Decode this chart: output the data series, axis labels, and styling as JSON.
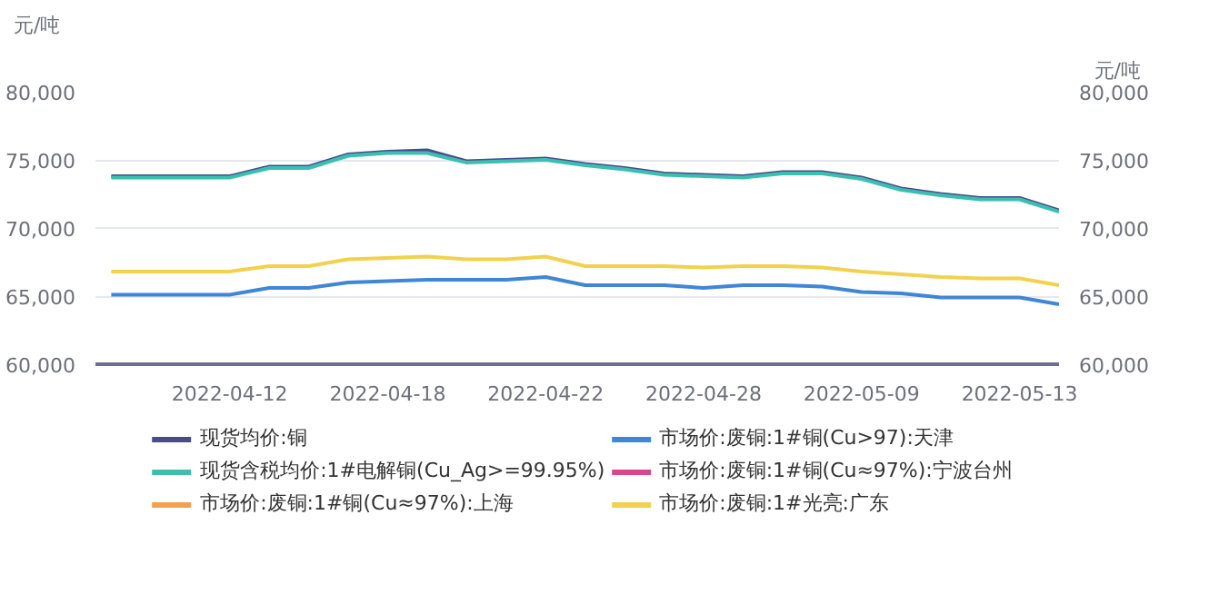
{
  "chart_data": {
    "type": "line",
    "ylabel": "元/吨",
    "y2label": "元/吨",
    "categories": [
      null,
      null,
      null,
      "2022-04-12",
      null,
      null,
      null,
      "2022-04-18",
      null,
      null,
      null,
      "2022-04-22",
      null,
      null,
      null,
      "2022-04-28",
      null,
      null,
      null,
      "2022-05-09",
      null,
      null,
      null,
      "2022-05-13",
      null
    ],
    "ylim": [
      60000,
      80000
    ],
    "yticks": [
      {
        "value": 60000,
        "label": "60,000"
      },
      {
        "value": 65000,
        "label": "65,000"
      },
      {
        "value": 70000,
        "label": "70,000"
      },
      {
        "value": 75000,
        "label": "75,000"
      },
      {
        "value": 80000,
        "label": "80,000"
      }
    ],
    "y2lim": [
      60000,
      80000
    ],
    "y2ticks": [
      {
        "value": 60000,
        "label": "60,000"
      },
      {
        "value": 65000,
        "label": "65,000"
      },
      {
        "value": 70000,
        "label": "70,000"
      },
      {
        "value": 75000,
        "label": "75,000"
      },
      {
        "value": 80000,
        "label": "80,000"
      }
    ],
    "grid": "y",
    "legend": "bottom",
    "marker": "none",
    "line_style": "solid",
    "series": [
      {
        "name": "现货均价:铜",
        "color": "#464d8c",
        "values": [
          73800,
          73800,
          73800,
          73800,
          74500,
          74500,
          75400,
          75600,
          75700,
          74900,
          75000,
          75100,
          74700,
          74400,
          74000,
          73900,
          73800,
          74100,
          74100,
          73700,
          72900,
          72500,
          72200,
          72200,
          71300
        ]
      },
      {
        "name": "现货含税均价:1#电解铜(Cu_Ag>=99.95%)",
        "color": "#3bbfb0",
        "values": [
          73700,
          73700,
          73700,
          73700,
          74400,
          74400,
          75300,
          75500,
          75500,
          74800,
          74900,
          75000,
          74600,
          74300,
          73900,
          73800,
          73700,
          74000,
          74000,
          73600,
          72800,
          72400,
          72100,
          72100,
          71200
        ]
      },
      {
        "name": "市场价:废铜:1#铜(Cu≈97%):上海",
        "color": "#f4a04e",
        "values": [
          null,
          null,
          null,
          null,
          null,
          null,
          null,
          null,
          null,
          null,
          null,
          null,
          null,
          null,
          null,
          null,
          null,
          null,
          null,
          null,
          null,
          null,
          null,
          null,
          null
        ]
      },
      {
        "name": "市场价:废铜:1#铜(Cu>97):天津",
        "color": "#3f86d6",
        "values": [
          65100,
          65100,
          65100,
          65100,
          65600,
          65600,
          66000,
          66100,
          66200,
          66200,
          66200,
          66400,
          65800,
          65800,
          65800,
          65600,
          65800,
          65800,
          65700,
          65300,
          65200,
          64900,
          64900,
          64900,
          64400
        ]
      },
      {
        "name": "市场价:废铜:1#铜(Cu≈97%):宁波台州",
        "color": "#d9458f",
        "values": [
          null,
          null,
          null,
          null,
          null,
          null,
          null,
          null,
          null,
          null,
          null,
          null,
          null,
          null,
          null,
          null,
          null,
          null,
          null,
          null,
          null,
          null,
          null,
          null,
          null
        ]
      },
      {
        "name": "市场价:废铜:1#光亮:广东",
        "color": "#f2d14c",
        "values": [
          66800,
          66800,
          66800,
          66800,
          67200,
          67200,
          67700,
          67800,
          67900,
          67700,
          67700,
          67900,
          67200,
          67200,
          67200,
          67100,
          67200,
          67200,
          67100,
          66800,
          66600,
          66400,
          66300,
          66300,
          65800
        ]
      }
    ]
  }
}
